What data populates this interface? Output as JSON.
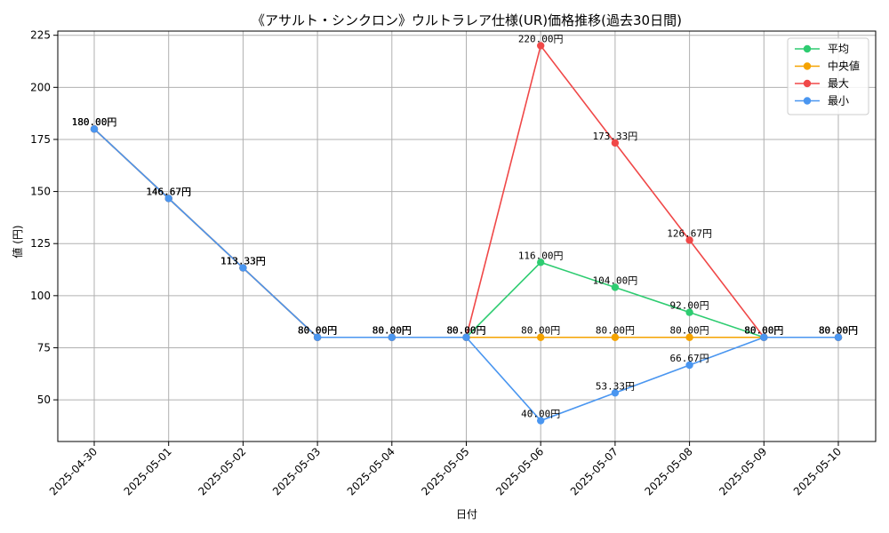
{
  "chart_data": {
    "type": "line",
    "title": "《アサルト・シンクロン》ウルトラレア仕様(UR)価格推移(過去30日間)",
    "xlabel": "日付",
    "ylabel": "値 (円)",
    "x": [
      "2025-04-30",
      "2025-05-01",
      "2025-05-02",
      "2025-05-03",
      "2025-05-04",
      "2025-05-05",
      "2025-05-06",
      "2025-05-07",
      "2025-05-08",
      "2025-05-09",
      "2025-05-10"
    ],
    "ylim": [
      30,
      227
    ],
    "yticks": [
      50,
      75,
      100,
      125,
      150,
      175,
      200,
      225
    ],
    "grid": true,
    "legend_position": "top-right",
    "value_suffix": "円",
    "series": [
      {
        "name": "平均",
        "color": "#2ecc71",
        "values": [
          180,
          146.67,
          113.33,
          80,
          80,
          80,
          116,
          104,
          92,
          80,
          80
        ]
      },
      {
        "name": "中央値",
        "color": "#f5a300",
        "values": [
          180,
          146.67,
          113.33,
          80,
          80,
          80,
          80,
          80,
          80,
          80,
          80
        ]
      },
      {
        "name": "最大",
        "color": "#f04848",
        "values": [
          180,
          146.67,
          113.33,
          80,
          80,
          80,
          220,
          173.33,
          126.67,
          80,
          80
        ]
      },
      {
        "name": "最小",
        "color": "#4a96f0",
        "values": [
          180,
          146.67,
          113.33,
          80,
          80,
          80,
          40,
          53.33,
          66.67,
          80,
          80
        ]
      }
    ]
  }
}
